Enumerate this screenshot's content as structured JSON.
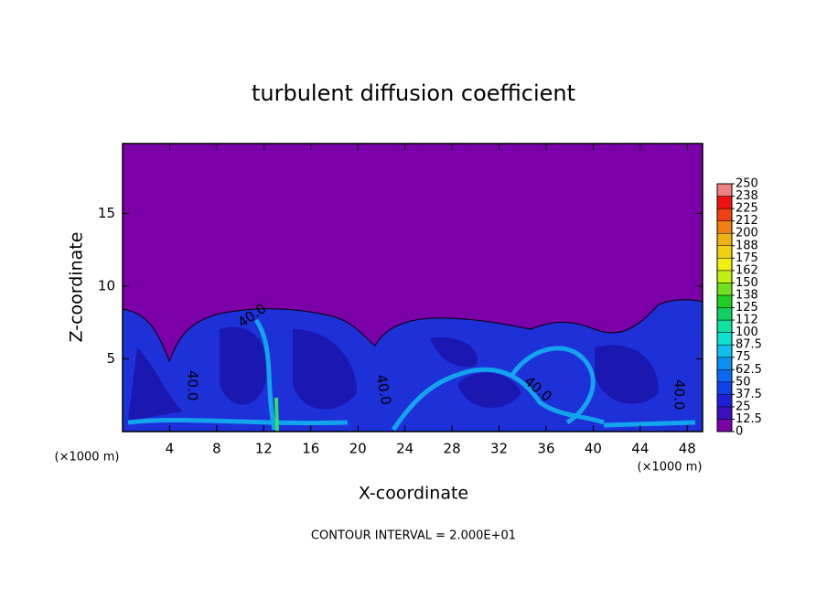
{
  "chart_data": {
    "type": "contour",
    "title": "turbulent diffusion coefficient",
    "xlabel": "X-coordinate",
    "ylabel": "Z-coordinate",
    "x_unit_label": "(×1000 m)",
    "footer": "CONTOUR INTERVAL = 2.000E+01",
    "xlim": [
      0,
      49.3
    ],
    "xticks": [
      4,
      8,
      12,
      16,
      20,
      24,
      28,
      32,
      36,
      40,
      44,
      48
    ],
    "ylim": [
      0,
      19.8
    ],
    "yticks": [
      5,
      10,
      15
    ],
    "contour_labels": [
      "40.0",
      "40.0",
      "40.0",
      "40.0",
      "40.0"
    ],
    "colorbar": {
      "ticks": [
        0,
        12.5,
        25,
        37.5,
        50,
        62.5,
        75,
        87.5,
        100,
        112,
        125,
        138,
        150,
        162,
        175,
        188,
        200,
        212,
        225,
        238,
        250
      ],
      "colors": [
        "#7b00a8",
        "#3a10c0",
        "#1e20d8",
        "#1040e8",
        "#0a68f0",
        "#0a90f0",
        "#10c0f0",
        "#10e0d0",
        "#10e0a0",
        "#10d060",
        "#20d020",
        "#70e020",
        "#c0f010",
        "#f0f010",
        "#f0d010",
        "#f0b010",
        "#f08010",
        "#f04010",
        "#f01010",
        "#f08080"
      ]
    }
  }
}
